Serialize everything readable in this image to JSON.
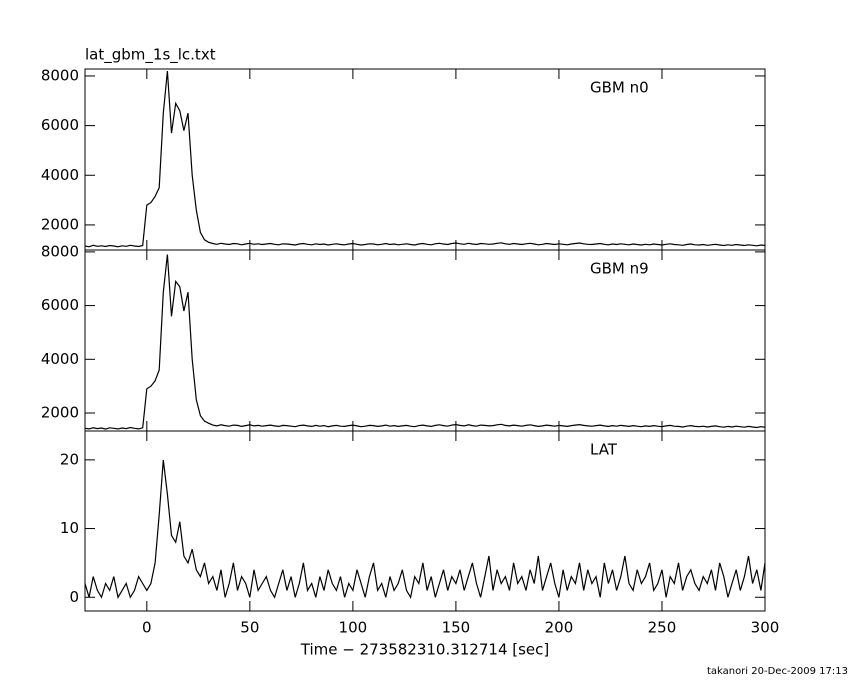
{
  "chart_data": [
    {
      "type": "line",
      "title": "lat_gbm_1s_lc.txt",
      "label": "GBM n0",
      "color": "#000000",
      "xlim": [
        -30,
        300
      ],
      "xticks": [
        0,
        50,
        100,
        150,
        200,
        250,
        300
      ],
      "ylim": [
        990,
        8280
      ],
      "yticks": [
        2000,
        4000,
        6000,
        8000
      ],
      "x": [
        -30,
        -28,
        -26,
        -24,
        -22,
        -20,
        -18,
        -16,
        -14,
        -12,
        -10,
        -8,
        -6,
        -4,
        -2,
        0,
        2,
        4,
        6,
        8,
        10,
        12,
        14,
        16,
        18,
        20,
        22,
        24,
        26,
        28,
        30,
        32,
        34,
        36,
        38,
        40,
        42,
        44,
        46,
        48,
        50,
        52,
        54,
        56,
        58,
        60,
        62,
        64,
        66,
        68,
        70,
        72,
        74,
        76,
        78,
        80,
        82,
        84,
        86,
        88,
        90,
        92,
        94,
        96,
        98,
        100,
        102,
        104,
        106,
        108,
        110,
        112,
        114,
        116,
        118,
        120,
        122,
        124,
        126,
        128,
        130,
        132,
        134,
        136,
        138,
        140,
        142,
        144,
        146,
        148,
        150,
        152,
        154,
        156,
        158,
        160,
        162,
        164,
        166,
        168,
        170,
        172,
        174,
        176,
        178,
        180,
        182,
        184,
        186,
        188,
        190,
        192,
        194,
        196,
        198,
        200,
        202,
        204,
        206,
        208,
        210,
        212,
        214,
        216,
        218,
        220,
        222,
        224,
        226,
        228,
        230,
        232,
        234,
        236,
        238,
        240,
        242,
        244,
        246,
        248,
        250,
        252,
        254,
        256,
        258,
        260,
        262,
        264,
        266,
        268,
        270,
        272,
        274,
        276,
        278,
        280,
        282,
        284,
        286,
        288,
        290,
        292,
        294,
        296,
        298,
        300
      ],
      "values": [
        1150,
        1120,
        1180,
        1140,
        1160,
        1130,
        1170,
        1150,
        1120,
        1160,
        1140,
        1180,
        1150,
        1130,
        1170,
        2800,
        2900,
        3150,
        3500,
        6500,
        8200,
        5700,
        6900,
        6600,
        5800,
        6500,
        4000,
        2600,
        1700,
        1400,
        1300,
        1250,
        1220,
        1260,
        1230,
        1210,
        1250,
        1240,
        1200,
        1230,
        1260,
        1220,
        1240,
        1210,
        1230,
        1250,
        1220,
        1200,
        1240,
        1230,
        1210,
        1190,
        1230,
        1250,
        1220,
        1200,
        1240,
        1210,
        1230,
        1190,
        1220,
        1240,
        1210,
        1200,
        1230,
        1250,
        1220,
        1190,
        1210,
        1240,
        1230,
        1200,
        1220,
        1250,
        1210,
        1230,
        1200,
        1220,
        1240,
        1210,
        1190,
        1230,
        1250,
        1220,
        1200,
        1240,
        1260,
        1230,
        1210,
        1250,
        1270,
        1240,
        1220,
        1260,
        1230,
        1210,
        1250,
        1240,
        1220,
        1230,
        1260,
        1280,
        1240,
        1220,
        1250,
        1230,
        1210,
        1240,
        1260,
        1230,
        1200,
        1220,
        1250,
        1230,
        1210,
        1240,
        1220,
        1200,
        1230,
        1250,
        1270,
        1240,
        1220,
        1210,
        1230,
        1250,
        1220,
        1200,
        1230,
        1210,
        1240,
        1220,
        1200,
        1230,
        1210,
        1190,
        1220,
        1200,
        1230,
        1210,
        1190,
        1220,
        1240,
        1210,
        1200,
        1180,
        1210,
        1230,
        1200,
        1190,
        1210,
        1180,
        1200,
        1220,
        1190,
        1170,
        1200,
        1180,
        1210,
        1190,
        1170,
        1200,
        1180,
        1160,
        1190,
        1170
      ]
    },
    {
      "type": "line",
      "label": "GBM n9",
      "color": "#000000",
      "xlim": [
        -30,
        300
      ],
      "xticks": [
        0,
        50,
        100,
        150,
        200,
        250,
        300
      ],
      "ylim": [
        1330,
        8070
      ],
      "yticks": [
        2000,
        4000,
        6000,
        8000
      ],
      "x": [
        -30,
        -28,
        -26,
        -24,
        -22,
        -20,
        -18,
        -16,
        -14,
        -12,
        -10,
        -8,
        -6,
        -4,
        -2,
        0,
        2,
        4,
        6,
        8,
        10,
        12,
        14,
        16,
        18,
        20,
        22,
        24,
        26,
        28,
        30,
        32,
        34,
        36,
        38,
        40,
        42,
        44,
        46,
        48,
        50,
        52,
        54,
        56,
        58,
        60,
        62,
        64,
        66,
        68,
        70,
        72,
        74,
        76,
        78,
        80,
        82,
        84,
        86,
        88,
        90,
        92,
        94,
        96,
        98,
        100,
        102,
        104,
        106,
        108,
        110,
        112,
        114,
        116,
        118,
        120,
        122,
        124,
        126,
        128,
        130,
        132,
        134,
        136,
        138,
        140,
        142,
        144,
        146,
        148,
        150,
        152,
        154,
        156,
        158,
        160,
        162,
        164,
        166,
        168,
        170,
        172,
        174,
        176,
        178,
        180,
        182,
        184,
        186,
        188,
        190,
        192,
        194,
        196,
        198,
        200,
        202,
        204,
        206,
        208,
        210,
        212,
        214,
        216,
        218,
        220,
        222,
        224,
        226,
        228,
        230,
        232,
        234,
        236,
        238,
        240,
        242,
        244,
        246,
        248,
        250,
        252,
        254,
        256,
        258,
        260,
        262,
        264,
        266,
        268,
        270,
        272,
        274,
        276,
        278,
        280,
        282,
        284,
        286,
        288,
        290,
        292,
        294,
        296,
        298,
        300
      ],
      "values": [
        1430,
        1410,
        1450,
        1420,
        1440,
        1400,
        1450,
        1430,
        1410,
        1440,
        1420,
        1460,
        1430,
        1410,
        1450,
        2900,
        3000,
        3200,
        3600,
        6500,
        7900,
        5600,
        6900,
        6700,
        5800,
        6500,
        4000,
        2500,
        1900,
        1700,
        1620,
        1550,
        1520,
        1560,
        1530,
        1510,
        1550,
        1540,
        1500,
        1530,
        1560,
        1520,
        1540,
        1510,
        1530,
        1550,
        1520,
        1500,
        1540,
        1530,
        1510,
        1490,
        1530,
        1550,
        1520,
        1500,
        1540,
        1510,
        1530,
        1490,
        1520,
        1540,
        1510,
        1500,
        1530,
        1550,
        1520,
        1490,
        1510,
        1540,
        1530,
        1500,
        1520,
        1550,
        1510,
        1530,
        1500,
        1520,
        1540,
        1510,
        1490,
        1530,
        1550,
        1520,
        1500,
        1540,
        1560,
        1530,
        1510,
        1550,
        1570,
        1540,
        1520,
        1560,
        1530,
        1510,
        1550,
        1540,
        1520,
        1530,
        1560,
        1580,
        1540,
        1520,
        1550,
        1530,
        1510,
        1540,
        1560,
        1530,
        1500,
        1520,
        1550,
        1530,
        1510,
        1540,
        1520,
        1500,
        1530,
        1550,
        1570,
        1540,
        1520,
        1510,
        1530,
        1550,
        1520,
        1500,
        1530,
        1510,
        1540,
        1520,
        1500,
        1530,
        1510,
        1490,
        1520,
        1500,
        1530,
        1510,
        1490,
        1520,
        1540,
        1510,
        1500,
        1480,
        1510,
        1530,
        1500,
        1490,
        1510,
        1480,
        1500,
        1520,
        1490,
        1470,
        1500,
        1480,
        1510,
        1490,
        1470,
        1500,
        1480,
        1460,
        1490,
        1470
      ]
    },
    {
      "type": "line",
      "label": "LAT",
      "color": "#000000",
      "xlabel": "Time − 273582310.312714 [sec]",
      "xlim": [
        -30,
        300
      ],
      "xticks": [
        0,
        50,
        100,
        150,
        200,
        250,
        300
      ],
      "ylim": [
        -2,
        24.2
      ],
      "yticks": [
        0,
        10,
        20
      ],
      "x": [
        -30,
        -28,
        -26,
        -24,
        -22,
        -20,
        -18,
        -16,
        -14,
        -12,
        -10,
        -8,
        -6,
        -4,
        -2,
        0,
        2,
        4,
        6,
        8,
        10,
        12,
        14,
        16,
        18,
        20,
        22,
        24,
        26,
        28,
        30,
        32,
        34,
        36,
        38,
        40,
        42,
        44,
        46,
        48,
        50,
        52,
        54,
        56,
        58,
        60,
        62,
        64,
        66,
        68,
        70,
        72,
        74,
        76,
        78,
        80,
        82,
        84,
        86,
        88,
        90,
        92,
        94,
        96,
        98,
        100,
        102,
        104,
        106,
        108,
        110,
        112,
        114,
        116,
        118,
        120,
        122,
        124,
        126,
        128,
        130,
        132,
        134,
        136,
        138,
        140,
        142,
        144,
        146,
        148,
        150,
        152,
        154,
        156,
        158,
        160,
        162,
        164,
        166,
        168,
        170,
        172,
        174,
        176,
        178,
        180,
        182,
        184,
        186,
        188,
        190,
        192,
        194,
        196,
        198,
        200,
        202,
        204,
        206,
        208,
        210,
        212,
        214,
        216,
        218,
        220,
        222,
        224,
        226,
        228,
        230,
        232,
        234,
        236,
        238,
        240,
        242,
        244,
        246,
        248,
        250,
        252,
        254,
        256,
        258,
        260,
        262,
        264,
        266,
        268,
        270,
        272,
        274,
        276,
        278,
        280,
        282,
        284,
        286,
        288,
        290,
        292,
        294,
        296,
        298,
        300
      ],
      "values": [
        2,
        0,
        3,
        1,
        0,
        2,
        1,
        3,
        0,
        1,
        2,
        0,
        1,
        3,
        2,
        1,
        2,
        5,
        12,
        20,
        15,
        9,
        8,
        11,
        6,
        5,
        7,
        4,
        3,
        5,
        2,
        3,
        1,
        4,
        0,
        2,
        5,
        1,
        3,
        2,
        0,
        4,
        1,
        2,
        3,
        1,
        0,
        2,
        4,
        1,
        3,
        0,
        2,
        5,
        1,
        2,
        0,
        3,
        1,
        4,
        2,
        1,
        3,
        0,
        2,
        1,
        4,
        2,
        0,
        3,
        5,
        1,
        2,
        0,
        3,
        1,
        2,
        4,
        1,
        0,
        3,
        2,
        5,
        1,
        3,
        0,
        2,
        4,
        1,
        3,
        2,
        4,
        1,
        3,
        5,
        2,
        0,
        3,
        6,
        1,
        4,
        2,
        3,
        1,
        5,
        2,
        3,
        1,
        4,
        2,
        6,
        1,
        3,
        5,
        2,
        0,
        4,
        1,
        3,
        2,
        5,
        1,
        4,
        2,
        3,
        0,
        5,
        2,
        4,
        1,
        3,
        6,
        2,
        1,
        4,
        2,
        3,
        5,
        1,
        2,
        4,
        0,
        3,
        2,
        5,
        1,
        3,
        4,
        2,
        1,
        3,
        2,
        4,
        1,
        5,
        3,
        0,
        2,
        4,
        1,
        3,
        6,
        2,
        4,
        1,
        5
      ]
    }
  ],
  "footer": "takanori 20-Dec-2009 17:13"
}
